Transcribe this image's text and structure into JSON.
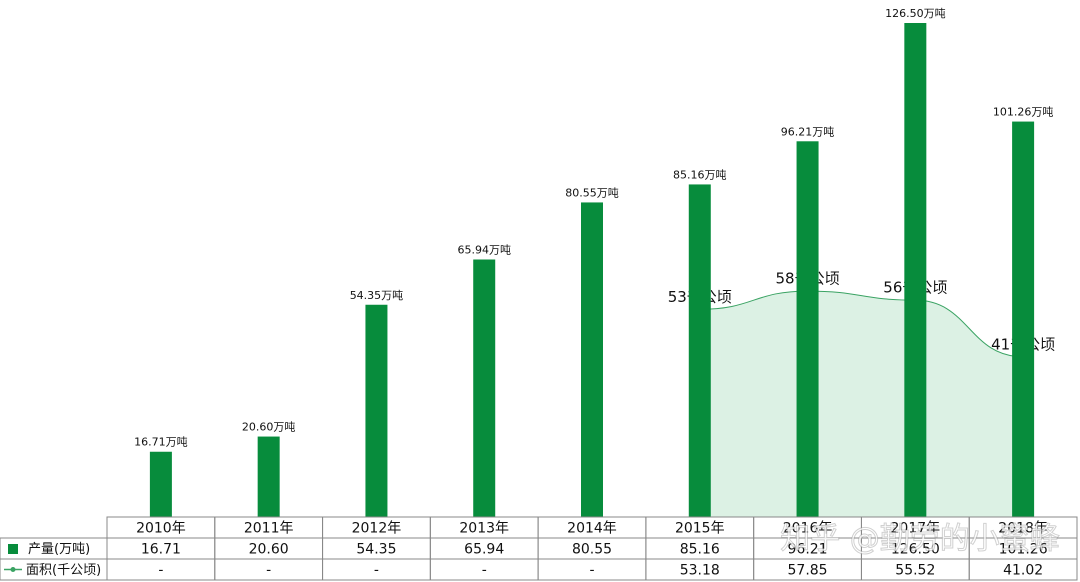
{
  "chart_data": {
    "type": "bar",
    "categories": [
      "2010年",
      "2011年",
      "2012年",
      "2013年",
      "2014年",
      "2015年",
      "2016年",
      "2017年",
      "2018年"
    ],
    "series": [
      {
        "name": "产量(万吨)",
        "type": "bar",
        "color": "#078c3c",
        "values": [
          16.71,
          20.6,
          54.35,
          65.94,
          80.55,
          85.16,
          96.21,
          126.5,
          101.26
        ],
        "value_labels": [
          "16.71万吨",
          "20.60万吨",
          "54.35万吨",
          "65.94万吨",
          "80.55万吨",
          "85.16万吨",
          "96.21万吨",
          "126.50万吨",
          "101.26万吨"
        ]
      },
      {
        "name": "面积(千公顷)",
        "type": "area",
        "color": "#3aa363",
        "values": [
          null,
          null,
          null,
          null,
          null,
          53.18,
          57.85,
          55.52,
          41.02
        ],
        "value_labels": [
          null,
          null,
          null,
          null,
          null,
          "53千公顷",
          "58千公顷",
          "56千公顷",
          "41千公顷"
        ]
      }
    ],
    "table": [
      [
        "16.71",
        "20.60",
        "54.35",
        "65.94",
        "80.55",
        "85.16",
        "96.21",
        "126.50",
        "101.26"
      ],
      [
        "-",
        "-",
        "-",
        "-",
        "-",
        "53.18",
        "57.85",
        "55.52",
        "41.02"
      ]
    ],
    "watermark": "知乎 @勤劳的小蜜蜂"
  }
}
